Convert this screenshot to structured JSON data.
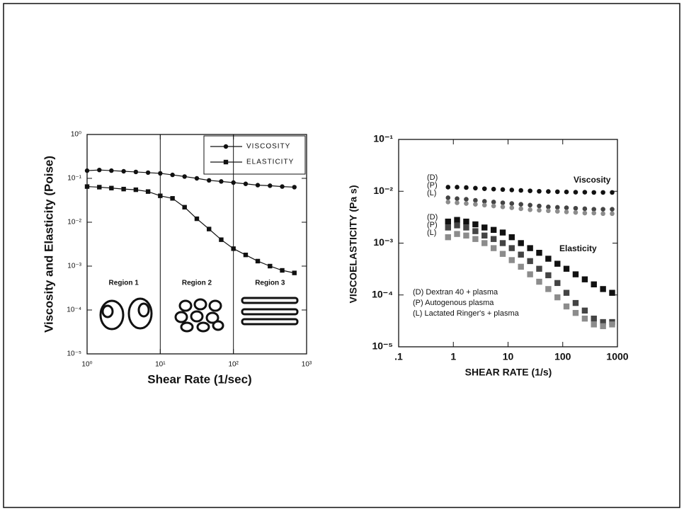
{
  "chart_data": [
    {
      "type": "line",
      "xlabel": "Shear Rate (1/sec)",
      "ylabel": "Viscosity and Elasticity (Poise)",
      "x": [
        1,
        1.47,
        2.15,
        3.16,
        4.64,
        6.81,
        10,
        14.7,
        21.5,
        31.6,
        46.4,
        68.1,
        100,
        147,
        215,
        316,
        464,
        681
      ],
      "series": [
        {
          "name": "VISCOSITY",
          "color": "#111111",
          "marker": "circle",
          "values": [
            0.15,
            0.155,
            0.15,
            0.145,
            0.14,
            0.135,
            0.13,
            0.12,
            0.11,
            0.1,
            0.09,
            0.085,
            0.08,
            0.075,
            0.07,
            0.068,
            0.065,
            0.063
          ]
        },
        {
          "name": "ELASTICITY",
          "color": "#111111",
          "marker": "square",
          "values": [
            0.065,
            0.063,
            0.06,
            0.057,
            0.055,
            0.05,
            0.04,
            0.035,
            0.022,
            0.012,
            0.007,
            0.004,
            0.0025,
            0.0018,
            0.0013,
            0.001,
            0.0008,
            0.0007
          ]
        }
      ],
      "xscale": "log",
      "yscale": "log",
      "xlim": [
        1,
        1000
      ],
      "xticks": [
        {
          "value": 1,
          "label": "10⁰"
        },
        {
          "value": 10,
          "label": "10¹"
        },
        {
          "value": 100,
          "label": "10²"
        },
        {
          "value": 1000,
          "label": "10³"
        }
      ],
      "ylim": [
        1e-05,
        1
      ],
      "yticks": [
        {
          "value": 1e-05,
          "label": "10⁻⁵"
        },
        {
          "value": 0.0001,
          "label": "10⁻⁴"
        },
        {
          "value": 0.001,
          "label": "10⁻³"
        },
        {
          "value": 0.01,
          "label": "10⁻²"
        },
        {
          "value": 0.1,
          "label": "10⁻¹"
        },
        {
          "value": 1,
          "label": "10⁰"
        }
      ],
      "region_dividers": [
        10,
        100
      ],
      "regions": [
        "Region 1",
        "Region 2",
        "Region 3"
      ],
      "legend": "upper right"
    },
    {
      "type": "scatter",
      "xlabel": "SHEAR RATE (1/s)",
      "ylabel": "VISCOELASTICITY (Pa s)",
      "x": [
        0.8,
        1.17,
        1.72,
        2.53,
        3.71,
        5.45,
        8,
        11.7,
        17.2,
        25.3,
        37.1,
        54.5,
        80,
        117,
        172,
        253,
        371,
        545,
        800
      ],
      "series": [
        {
          "name": "(D) Dextran 40 + plasma",
          "color": "#111111",
          "viscosity": [
            0.012,
            0.012,
            0.0118,
            0.0115,
            0.0112,
            0.011,
            0.0108,
            0.0106,
            0.0104,
            0.0102,
            0.01,
            0.0099,
            0.0098,
            0.0097,
            0.0096,
            0.0096,
            0.0095,
            0.0095,
            0.0095
          ],
          "elasticity": [
            0.0026,
            0.0028,
            0.0026,
            0.0023,
            0.002,
            0.0018,
            0.0016,
            0.0013,
            0.001,
            0.0008,
            0.00065,
            0.0005,
            0.0004,
            0.00032,
            0.00025,
            0.0002,
            0.00016,
            0.00013,
            0.00011
          ]
        },
        {
          "name": "(P) Autogenous plasma",
          "color": "#444444",
          "viscosity": [
            0.0075,
            0.0072,
            0.007,
            0.0067,
            0.0064,
            0.0062,
            0.006,
            0.0058,
            0.0056,
            0.0054,
            0.0052,
            0.005,
            0.0049,
            0.0048,
            0.0047,
            0.0046,
            0.0045,
            0.0045,
            0.0045
          ],
          "elasticity": [
            0.002,
            0.0022,
            0.002,
            0.0017,
            0.0014,
            0.0012,
            0.001,
            0.0008,
            0.0006,
            0.00045,
            0.00032,
            0.00024,
            0.00017,
            0.00011,
            7e-05,
            5e-05,
            3.5e-05,
            3e-05,
            3e-05
          ]
        },
        {
          "name": "(L) Lactated Ringer's + plasma",
          "color": "#8c8c8c",
          "viscosity": [
            0.0062,
            0.006,
            0.0058,
            0.0056,
            0.0054,
            0.0052,
            0.005,
            0.0048,
            0.0046,
            0.0044,
            0.0043,
            0.0042,
            0.0041,
            0.004,
            0.0039,
            0.0038,
            0.0038,
            0.0037,
            0.0037
          ],
          "elasticity": [
            0.0013,
            0.0015,
            0.0014,
            0.0012,
            0.001,
            0.0008,
            0.00062,
            0.00047,
            0.00035,
            0.00025,
            0.00018,
            0.00013,
            9e-05,
            6e-05,
            4.5e-05,
            3.5e-05,
            2.7e-05,
            2.5e-05,
            2.7e-05
          ]
        }
      ],
      "tags": [
        "(D)",
        "(P)",
        "(L)"
      ],
      "annotations": {
        "viscosity": "Viscosity",
        "elasticity": "Elasticity"
      },
      "xscale": "log",
      "yscale": "log",
      "xlim": [
        0.1,
        1000
      ],
      "xticks": [
        {
          "value": 0.1,
          "label": ".1"
        },
        1,
        10,
        100,
        1000
      ],
      "ylim": [
        1e-05,
        0.1
      ],
      "yticks": [
        {
          "value": 1e-05,
          "label": "10⁻⁵"
        },
        {
          "value": 0.0001,
          "label": "10⁻⁴"
        },
        {
          "value": 0.001,
          "label": "10⁻³"
        },
        {
          "value": 0.01,
          "label": "10⁻²"
        },
        {
          "value": 0.1,
          "label": "10⁻¹"
        }
      ],
      "legend": "lower left"
    }
  ]
}
